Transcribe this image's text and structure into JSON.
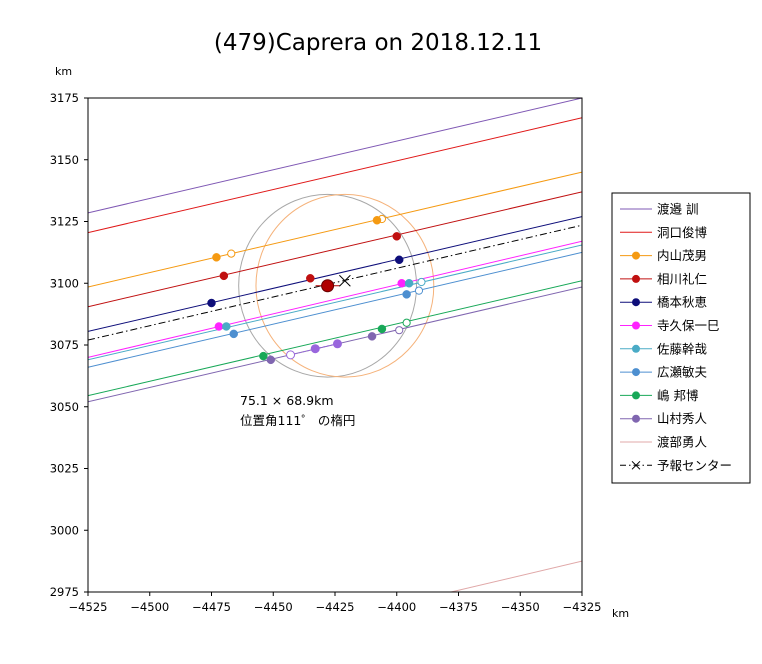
{
  "chart_data": {
    "type": "line",
    "title": "(479)Caprera on 2018.12.11",
    "xlabel": "km",
    "ylabel": "km",
    "xlim": [
      -4525,
      -4325
    ],
    "ylim": [
      2975,
      3175
    ],
    "x_ticks": [
      "−4525",
      "−4500",
      "−4475",
      "−4450",
      "−4425",
      "−4400",
      "−4375",
      "−4350",
      "−4325"
    ],
    "y_ticks": [
      "3175",
      "3150",
      "3125",
      "3100",
      "3075",
      "3050",
      "3025",
      "3000",
      "2975"
    ],
    "grid": false,
    "legend_position": "right",
    "annotations": {
      "size": "75.1 × 68.9km",
      "note": "位置角111゜ の楕円"
    },
    "ellipses": [
      {
        "cx": -4428,
        "cy": 3099,
        "rx": 36,
        "ry": 37,
        "color": "#a8a8a8"
      },
      {
        "cx": -4421,
        "cy": 3099,
        "rx": 36,
        "ry": 37,
        "color": "#f5b27a"
      }
    ],
    "center_marker": {
      "x": -4428,
      "y": 3099,
      "color": "#b00000"
    },
    "prediction_marker": {
      "x": -4421,
      "y": 3101
    },
    "series": [
      {
        "name": "渡邉 訓",
        "color": "#7f58b4",
        "style": "line",
        "line": [
          [
            -4525,
            3128.5
          ],
          [
            -4325,
            3175
          ]
        ]
      },
      {
        "name": "洞口俊博",
        "color": "#e01818",
        "style": "line",
        "line": [
          [
            -4525,
            3120.5
          ],
          [
            -4325,
            3167
          ]
        ]
      },
      {
        "name": "内山茂男",
        "color": "#f59a12",
        "style": "chord",
        "line": [
          [
            -4525,
            3098.5
          ],
          [
            -4325,
            3145
          ]
        ],
        "points": [
          [
            -4473,
            3110.5
          ],
          [
            -4408,
            3125.5
          ]
        ],
        "hollow": [
          [
            -4467,
            3112
          ],
          [
            -4406,
            3126
          ]
        ]
      },
      {
        "name": "相川礼仁",
        "color": "#c01010",
        "style": "chord",
        "line": [
          [
            -4525,
            3090.5
          ],
          [
            -4325,
            3137
          ]
        ],
        "points": [
          [
            -4470,
            3103
          ],
          [
            -4435,
            3102
          ],
          [
            -4400,
            3119
          ]
        ],
        "hollow": []
      },
      {
        "name": "橋本秋恵",
        "color": "#0e0e7a",
        "style": "chord",
        "line": [
          [
            -4525,
            3080.5
          ],
          [
            -4325,
            3127
          ]
        ],
        "points": [
          [
            -4475,
            3092
          ],
          [
            -4399,
            3109.5
          ]
        ],
        "hollow": []
      },
      {
        "name": "寺久保一巳",
        "color": "#ff22ff",
        "style": "chord",
        "line": [
          [
            -4525,
            3070
          ],
          [
            -4325,
            3117
          ]
        ],
        "points": [
          [
            -4472,
            3082.5
          ],
          [
            -4398,
            3100
          ]
        ],
        "hollow": []
      },
      {
        "name": "佐藤幹哉",
        "color": "#4aabc6",
        "style": "chord",
        "line": [
          [
            -4525,
            3069
          ],
          [
            -4325,
            3115.5
          ]
        ],
        "points": [
          [
            -4469,
            3082.5
          ],
          [
            -4395,
            3100
          ]
        ],
        "hollow": [
          [
            -4390,
            3100.5
          ]
        ]
      },
      {
        "name": "広瀬敏夫",
        "color": "#4d8fd0",
        "style": "chord",
        "line": [
          [
            -4525,
            3066
          ],
          [
            -4325,
            3112.5
          ]
        ],
        "points": [
          [
            -4466,
            3079.5
          ],
          [
            -4396,
            3095.5
          ]
        ],
        "hollow": [
          [
            -4391,
            3097
          ]
        ]
      },
      {
        "name": "嶋 邦博",
        "color": "#18a858",
        "style": "chord",
        "line": [
          [
            -4525,
            3054.5
          ],
          [
            -4325,
            3101
          ]
        ],
        "points": [
          [
            -4454,
            3070.5
          ],
          [
            -4406,
            3081.5
          ]
        ],
        "hollow": [
          [
            -4396,
            3084
          ]
        ]
      },
      {
        "name": "山村秀人",
        "color": "#8066b0",
        "style": "chord",
        "line": [
          [
            -4525,
            3052
          ],
          [
            -4325,
            3098.5
          ]
        ],
        "points": [
          [
            -4451,
            3069
          ],
          [
            -4410,
            3078.5
          ]
        ],
        "hollow": [
          [
            -4399,
            3081
          ]
        ]
      },
      {
        "name": "渡部勇人",
        "color": "#e0a8a8",
        "style": "line",
        "line": [
          [
            -4378,
            2975
          ],
          [
            -4325,
            2987.5
          ]
        ]
      },
      {
        "name": "予報センター",
        "color": "#000000",
        "style": "center",
        "line": [
          [
            -4525,
            3077
          ],
          [
            -4325,
            3123.5
          ]
        ]
      }
    ],
    "extra_points": [
      {
        "x": -4433,
        "y": 3073.5,
        "color": "#9966dd",
        "filled": true
      },
      {
        "x": -4424,
        "y": 3075.5,
        "color": "#9966dd",
        "filled": true
      },
      {
        "x": -4443,
        "y": 3071,
        "color": "#9966dd",
        "filled": false
      }
    ]
  }
}
